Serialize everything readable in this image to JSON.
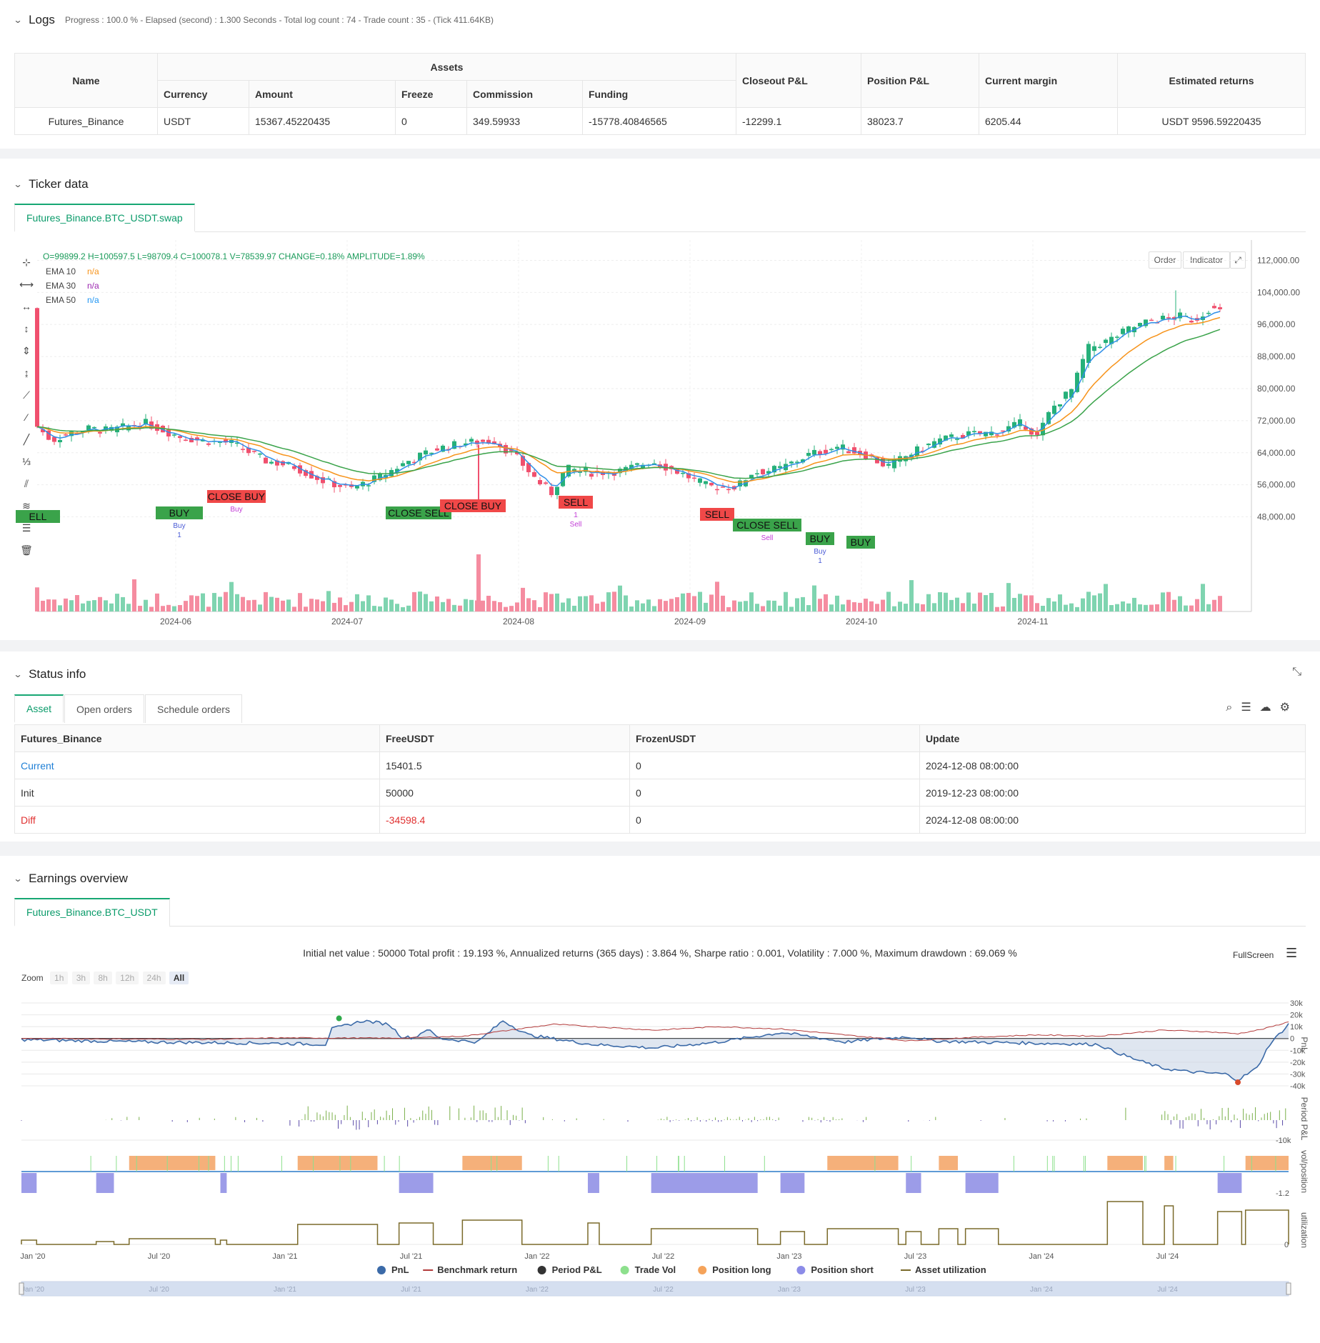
{
  "logs": {
    "title": "Logs",
    "summary": "Progress : 100.0 % - Elapsed (second) : 1.300  Seconds - Total log count : 74 - Trade count : 35 - (Tick 411.64KB)",
    "headers": {
      "name": "Name",
      "assets": "Assets",
      "currency": "Currency",
      "amount": "Amount",
      "freeze": "Freeze",
      "commission": "Commission",
      "funding": "Funding",
      "closeout": "Closeout P&L",
      "position": "Position P&L",
      "margin": "Current margin",
      "returns": "Estimated returns"
    },
    "row": {
      "name": "Futures_Binance",
      "currency": "USDT",
      "amount": "15367.45220435",
      "freeze": "0",
      "commission": "349.59933",
      "funding": "-15778.40846565",
      "closeout": "-12299.1",
      "position": "38023.7",
      "margin": "6205.44",
      "returns": "USDT 9596.59220435"
    }
  },
  "ticker": {
    "title": "Ticker data",
    "tab": "Futures_Binance.BTC_USDT.swap",
    "ohlc": "O=99899.2 H=100597.5 L=98709.4 C=100078.1 V=78539.97 CHANGE=0.18% AMPLITUDE=1.89%",
    "ema": [
      {
        "label": "EMA 10",
        "value": "n/a",
        "color": "#f7931a"
      },
      {
        "label": "EMA 30",
        "value": "n/a",
        "color": "#9c27b0"
      },
      {
        "label": "EMA 50",
        "value": "n/a",
        "color": "#2196f3"
      }
    ],
    "buttons": {
      "order": "Order",
      "indicator": "Indicator"
    },
    "yticks": [
      "112,000.00",
      "104,000.00",
      "96,000.00",
      "88,000.00",
      "80,000.00",
      "72,000.00",
      "64,000.00",
      "56,000.00",
      "48,000.00"
    ],
    "xticks": [
      "2024-06",
      "2024-07",
      "2024-08",
      "2024-09",
      "2024-10",
      "2024-11"
    ],
    "signals": [
      {
        "text": "ELL",
        "color": "#3aa34a",
        "small": ""
      },
      {
        "text": "BUY",
        "color": "#3aa34a",
        "small": "Buy\n1"
      },
      {
        "text": "CLOSE BUY",
        "color": "#f04848",
        "small": "Buy"
      },
      {
        "text": "CLOSE SELL",
        "color": "#3aa34a",
        "small": ""
      },
      {
        "text": "CLOSE BUY",
        "color": "#f04848",
        "small": ""
      },
      {
        "text": "SELL",
        "color": "#f04848",
        "small": "1\nSell"
      },
      {
        "text": "SELL",
        "color": "#f04848",
        "small": ""
      },
      {
        "text": "CLOSE SELL",
        "color": "#3aa34a",
        "small": "Sell"
      },
      {
        "text": "BUY",
        "color": "#3aa34a",
        "small": "Buy\n1"
      },
      {
        "text": "BUY",
        "color": "#3aa34a",
        "small": ""
      }
    ]
  },
  "status": {
    "title": "Status info",
    "tabs": [
      "Asset",
      "Open orders",
      "Schedule orders"
    ],
    "headers": [
      "Futures_Binance",
      "FreeUSDT",
      "FrozenUSDT",
      "Update"
    ],
    "rows": [
      {
        "c0": "Current",
        "c1": "15401.5",
        "c2": "0",
        "c3": "2024-12-08 08:00:00"
      },
      {
        "c0": "Init",
        "c1": "50000",
        "c2": "0",
        "c3": "2019-12-23 08:00:00"
      },
      {
        "c0": "Diff",
        "c1": "-34598.4",
        "c2": "0",
        "c3": "2024-12-08 08:00:00"
      }
    ]
  },
  "earnings": {
    "title": "Earnings overview",
    "tab": "Futures_Binance.BTC_USDT",
    "summary": "Initial net value : 50000 Total profit : 19.193 %, Annualized returns (365 days) : 3.864 %, Sharpe ratio : 0.001, Volatility : 7.000 %, Maximum drawdown : 69.069 %",
    "fullscreen": "FullScreen",
    "zoom_label": "Zoom",
    "zoom": [
      "1h",
      "3h",
      "8h",
      "12h",
      "24h",
      "All"
    ],
    "pnl_ticks": [
      "30k",
      "20k",
      "10k",
      "0",
      "-10k",
      "-20k",
      "-30k",
      "-40k"
    ],
    "ppl_tick": "-10k",
    "pos_tick": "-1.2",
    "util_tick": "0",
    "axis_labels": [
      "PnL",
      "Period P&L",
      "vol/position",
      "utilization"
    ],
    "xticks": [
      "Jan '20",
      "Jul '20",
      "Jan '21",
      "Jul '21",
      "Jan '22",
      "Jul '22",
      "Jan '23",
      "Jul '23",
      "Jan '24",
      "Jul '24"
    ],
    "legend": [
      {
        "label": "PnL",
        "color": "#3b6aa8"
      },
      {
        "label": "Benchmark return",
        "color": "#b23a3a"
      },
      {
        "label": "Period P&L",
        "color": "#333333"
      },
      {
        "label": "Trade Vol",
        "color": "#8de08d"
      },
      {
        "label": "Position long",
        "color": "#f5a35a"
      },
      {
        "label": "Position short",
        "color": "#8c8ce8"
      },
      {
        "label": "Asset utilization",
        "color": "#7a6a2a"
      }
    ]
  }
}
